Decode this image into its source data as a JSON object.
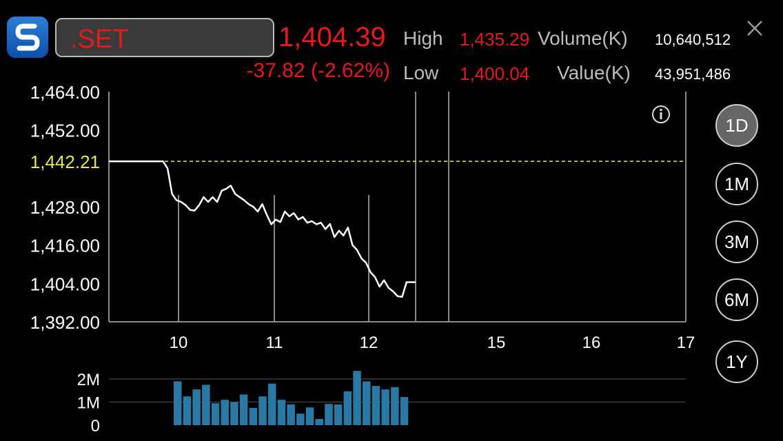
{
  "header": {
    "symbol": ".SET",
    "last": "1,404.39",
    "change": "-37.82 (-2.62%)",
    "high_label": "High",
    "high": "1,435.29",
    "low_label": "Low",
    "low": "1,400.04",
    "volume_label": "Volume(K)",
    "volume": "10,640,512",
    "value_label": "Value(K)",
    "value": "43,951,486"
  },
  "ranges": [
    "1D",
    "1M",
    "3M",
    "6M",
    "1Y"
  ],
  "active_range": "1D",
  "colors": {
    "accent": "#e8191d",
    "ref_line": "#e8e84a",
    "volume_bar": "#2a78a4"
  },
  "chart_data": [
    {
      "type": "line",
      "y_ticks": [
        "1,464.00",
        "1,452.00",
        "1,428.00",
        "1,416.00",
        "1,404.00",
        "1,392.00"
      ],
      "ref_label": "1,442.21",
      "ref_value": 1442.21,
      "x_ticks": [
        "10",
        "11",
        "12",
        "15",
        "16",
        "17"
      ],
      "ylim": [
        1392,
        1464
      ],
      "series": [
        {
          "values": [
            1442.2,
            1442.2,
            1442.2,
            1442.2,
            1442.2,
            1442.2,
            1442.2,
            1442.2,
            1442.2,
            1442.2,
            1442.2,
            1442.2,
            1442.2,
            1440,
            1432,
            1430,
            1429.5,
            1428.5,
            1427,
            1426.8,
            1428.5,
            1431,
            1429.5,
            1431,
            1429.5,
            1433,
            1433.6,
            1434.6,
            1432,
            1431,
            1430,
            1428.8,
            1428,
            1426.5,
            1428.8,
            1425.5,
            1422.5,
            1424,
            1423.2,
            1426.5,
            1425,
            1426,
            1424,
            1424.8,
            1423,
            1423.5,
            1422.5,
            1423,
            1421,
            1422.6,
            1418.5,
            1420.5,
            1419,
            1421.5,
            1416,
            1414.5,
            1411.8,
            1410.5,
            1407.5,
            1406,
            1403,
            1405,
            1402.6,
            1401.5,
            1400,
            1399.8,
            1404.4,
            1404.4,
            1404.4
          ]
        }
      ]
    },
    {
      "type": "bar",
      "y_ticks": [
        "2M",
        "1M",
        "0"
      ],
      "ylim": [
        0,
        2.3
      ],
      "series": [
        {
          "values": [
            1.9,
            1.25,
            1.55,
            1.75,
            0.95,
            1.1,
            1.0,
            1.33,
            0.75,
            1.25,
            1.8,
            1.1,
            0.9,
            0.5,
            0.77,
            0.27,
            0.92,
            0.9,
            1.47,
            2.35,
            1.9,
            1.7,
            1.55,
            1.65,
            1.22
          ]
        }
      ]
    }
  ]
}
